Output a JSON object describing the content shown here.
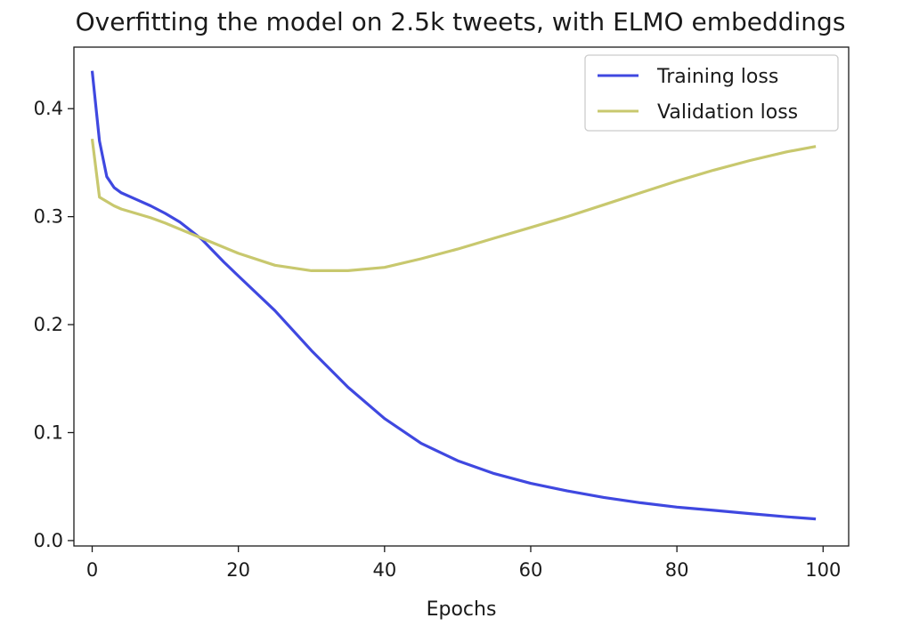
{
  "chart_data": {
    "type": "line",
    "title": "Overfitting the model on 2.5k tweets, with ELMO embeddings",
    "xlabel": "Epochs",
    "ylabel": "",
    "xlim": [
      -2.5,
      103.5
    ],
    "ylim": [
      -0.005,
      0.457
    ],
    "x_ticks": [
      0,
      20,
      40,
      60,
      80,
      100
    ],
    "x_tick_labels": [
      "0",
      "20",
      "40",
      "60",
      "80",
      "100"
    ],
    "y_ticks": [
      0.0,
      0.1,
      0.2,
      0.3,
      0.4
    ],
    "y_tick_labels": [
      "0.0",
      "0.1",
      "0.2",
      "0.3",
      "0.4"
    ],
    "grid": false,
    "legend_position": "top-right",
    "series": [
      {
        "name": "Training loss",
        "color": "#3f48e0",
        "x": [
          0,
          1,
          2,
          3,
          4,
          6,
          8,
          10,
          12,
          15,
          18,
          20,
          25,
          30,
          35,
          40,
          45,
          50,
          55,
          60,
          65,
          70,
          75,
          80,
          85,
          90,
          95,
          99
        ],
        "y": [
          0.435,
          0.37,
          0.337,
          0.327,
          0.322,
          0.316,
          0.31,
          0.303,
          0.295,
          0.279,
          0.258,
          0.245,
          0.213,
          0.176,
          0.142,
          0.113,
          0.09,
          0.074,
          0.062,
          0.053,
          0.046,
          0.04,
          0.035,
          0.031,
          0.028,
          0.025,
          0.022,
          0.02
        ]
      },
      {
        "name": "Validation loss",
        "color": "#c8c86e",
        "x": [
          0,
          1,
          2,
          3,
          4,
          6,
          8,
          10,
          15,
          20,
          25,
          30,
          35,
          40,
          45,
          50,
          55,
          60,
          65,
          70,
          75,
          80,
          85,
          90,
          95,
          99
        ],
        "y": [
          0.372,
          0.318,
          0.314,
          0.31,
          0.307,
          0.303,
          0.299,
          0.294,
          0.28,
          0.266,
          0.255,
          0.25,
          0.25,
          0.253,
          0.261,
          0.27,
          0.28,
          0.29,
          0.3,
          0.311,
          0.322,
          0.333,
          0.343,
          0.352,
          0.36,
          0.365
        ]
      }
    ]
  }
}
